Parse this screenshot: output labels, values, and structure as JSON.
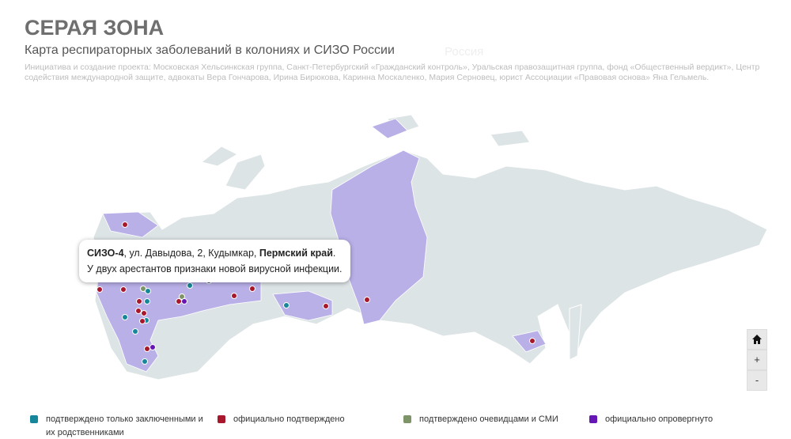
{
  "header": {
    "title": "СЕРАЯ ЗОНА",
    "subtitle": "Карта респираторных заболеваний в колониях и СИЗО России",
    "country_label": "Россия",
    "credits": "Инициатива и создание проекта: Московская Хельсинкская группа, Санкт-Петербургский «Гражданский контроль», Уральская правозащитная группа, фонд «Общественный вердикт», Центр содействия международной защите, адвокаты Вера Гончарова, Ирина Бирюкова, Каринна Москаленко, Мария Серновец, юрист Ассоциации «Правовая основа» Яна Гельмель."
  },
  "tooltip": {
    "name": "СИЗО-4",
    "address": ", ул. Давыдова, 2, Кудымкар, ",
    "region": "Пермский край",
    "period": ".",
    "text": "У двух арестантов признаки новой вирусной инфекции."
  },
  "controls": {
    "zoom_in": "+",
    "zoom_out": "-"
  },
  "legend": {
    "items": [
      {
        "label": "подтверждено только заключенными и их родственниками",
        "color": "#16879a"
      },
      {
        "label": "официально подтверждено",
        "color": "#a8172c"
      },
      {
        "label": "подтверждено очевидцами и СМИ",
        "color": "#7d9468"
      },
      {
        "label": "официально опровергнуто",
        "color": "#6616b4"
      }
    ]
  }
}
